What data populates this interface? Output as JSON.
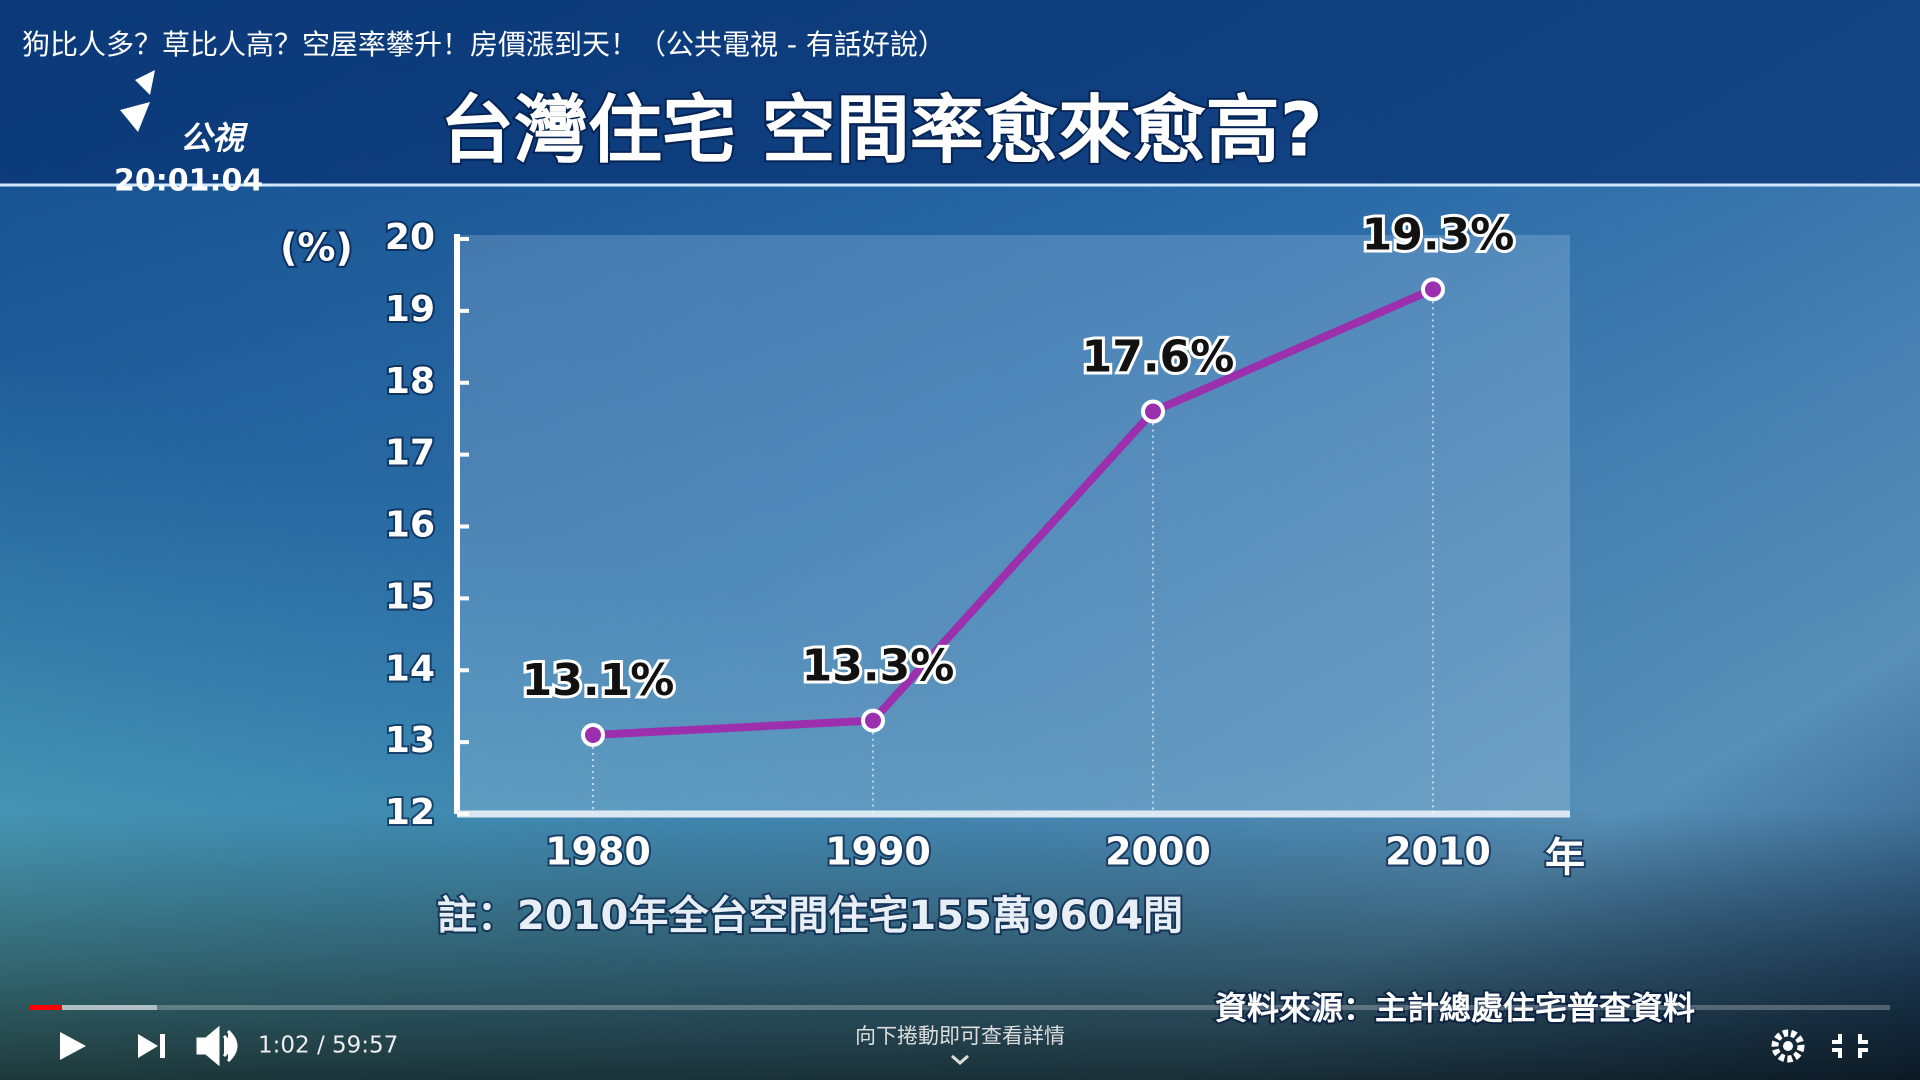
{
  "video": {
    "title": "狗比人多？草比人高？空屋率攀升！房價漲到天！（公共電視 - 有話好說）"
  },
  "logo": {
    "name": "公視",
    "clock": "20:01:04"
  },
  "chart_data": {
    "type": "line",
    "title": "台灣住宅  空間率愈來愈高?",
    "y_label": "(%)",
    "x_label": "年",
    "categories": [
      "1980",
      "1990",
      "2000",
      "2010"
    ],
    "series": [
      {
        "name": "空間率",
        "color": "#9b2fae",
        "values": [
          13.1,
          13.3,
          17.6,
          19.3
        ],
        "value_labels": [
          "13.1%",
          "13.3%",
          "17.6%",
          "19.3%"
        ]
      }
    ],
    "ylim": [
      12,
      20
    ],
    "yticks": [
      12,
      13,
      14,
      15,
      16,
      17,
      18,
      19,
      20
    ]
  },
  "note": "註：2010年全台空間住宅155萬9604間",
  "source": "資料來源：主計總處住宅普查資料",
  "player": {
    "time": "1:02 / 59:57",
    "scroll_hint": "向下捲動即可查看詳情"
  }
}
